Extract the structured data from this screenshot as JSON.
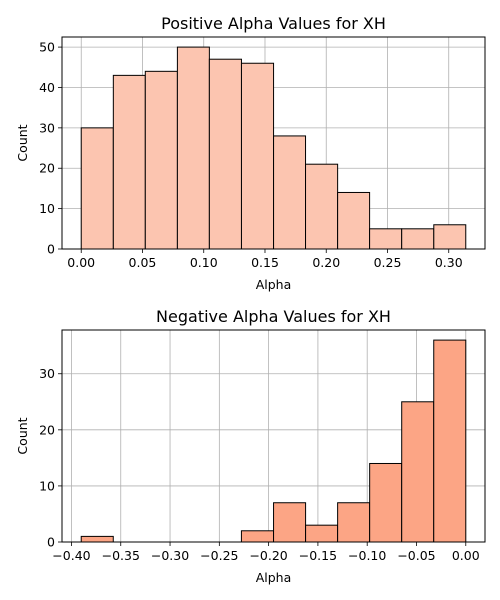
{
  "chart_data": [
    {
      "type": "histogram",
      "title": "Positive Alpha Values for XH",
      "xlabel": "Alpha",
      "ylabel": "Count",
      "bin_edges": [
        0.0,
        0.0262,
        0.0523,
        0.0785,
        0.1046,
        0.1308,
        0.157,
        0.1831,
        0.2093,
        0.2354,
        0.2616,
        0.2878,
        0.3139
      ],
      "counts": [
        30,
        43,
        44,
        50,
        47,
        46,
        28,
        21,
        14,
        5,
        5,
        6
      ],
      "xlim": [
        -0.0157,
        0.3296
      ],
      "ylim": [
        0,
        52.5
      ],
      "xticks": [
        0.0,
        0.05,
        0.1,
        0.15,
        0.2,
        0.25,
        0.3
      ],
      "xtick_labels": [
        "0.00",
        "0.05",
        "0.10",
        "0.15",
        "0.20",
        "0.25",
        "0.30"
      ],
      "yticks": [
        0,
        10,
        20,
        30,
        40,
        50
      ],
      "ytick_labels": [
        "0",
        "10",
        "20",
        "30",
        "40",
        "50"
      ],
      "grid": true,
      "bar_color": "#fcc5b0",
      "edge_color": "#000000"
    },
    {
      "type": "histogram",
      "title": "Negative Alpha Values for XH",
      "xlabel": "Alpha",
      "ylabel": "Count",
      "bin_edges": [
        -0.3901,
        -0.3576,
        -0.3251,
        -0.2926,
        -0.2601,
        -0.2276,
        -0.195,
        -0.1625,
        -0.13,
        -0.0975,
        -0.065,
        -0.0325,
        0.0
      ],
      "counts": [
        1,
        0,
        0,
        0,
        0,
        2,
        7,
        3,
        7,
        14,
        25,
        36
      ],
      "xlim": [
        -0.4096,
        0.0195
      ],
      "ylim": [
        0,
        37.8
      ],
      "xticks": [
        -0.4,
        -0.35,
        -0.3,
        -0.25,
        -0.2,
        -0.15,
        -0.1,
        -0.05,
        0.0
      ],
      "xtick_labels": [
        "−0.40",
        "−0.35",
        "−0.30",
        "−0.25",
        "−0.20",
        "−0.15",
        "−0.10",
        "−0.05",
        "0.00"
      ],
      "yticks": [
        0,
        10,
        20,
        30
      ],
      "ytick_labels": [
        "0",
        "10",
        "20",
        "30"
      ],
      "grid": true,
      "bar_color": "#fca585",
      "edge_color": "#000000"
    }
  ]
}
